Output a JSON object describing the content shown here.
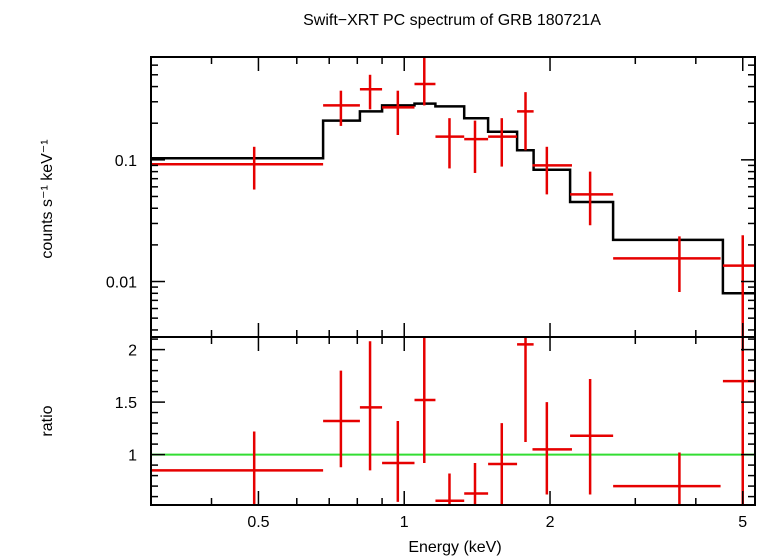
{
  "chart_data": [
    {
      "type": "scatter",
      "panel": "spectrum",
      "title": "Swift−XRT PC spectrum of GRB 180721A",
      "xlabel": "Energy (keV)",
      "ylabel": "counts s⁻¹ keV⁻¹",
      "x_scale": "log",
      "y_scale": "log",
      "xlim": [
        0.3,
        5.3
      ],
      "ylim": [
        0.0035,
        0.7
      ],
      "x_ticks": [
        {
          "value": 0.5,
          "label": "0.5"
        },
        {
          "value": 1,
          "label": "1"
        },
        {
          "value": 2,
          "label": "2"
        },
        {
          "value": 5,
          "label": "5"
        }
      ],
      "y_ticks": [
        {
          "value": 0.1,
          "label": "0.1"
        },
        {
          "value": 0.01,
          "label": "0.01"
        }
      ],
      "data_points": [
        {
          "x": 0.49,
          "xlo": 0.3,
          "xhi": 0.68,
          "y": 0.092,
          "ylo": 0.057,
          "yhi": 0.128
        },
        {
          "x": 0.74,
          "xlo": 0.68,
          "xhi": 0.81,
          "y": 0.28,
          "ylo": 0.19,
          "yhi": 0.37
        },
        {
          "x": 0.85,
          "xlo": 0.81,
          "xhi": 0.9,
          "y": 0.38,
          "ylo": 0.26,
          "yhi": 0.5
        },
        {
          "x": 0.97,
          "xlo": 0.9,
          "xhi": 1.05,
          "y": 0.27,
          "ylo": 0.16,
          "yhi": 0.37
        },
        {
          "x": 1.1,
          "xlo": 1.05,
          "xhi": 1.16,
          "y": 0.42,
          "ylo": 0.28,
          "yhi": 0.7
        },
        {
          "x": 1.24,
          "xlo": 1.16,
          "xhi": 1.33,
          "y": 0.155,
          "ylo": 0.085,
          "yhi": 0.22
        },
        {
          "x": 1.4,
          "xlo": 1.33,
          "xhi": 1.49,
          "y": 0.148,
          "ylo": 0.078,
          "yhi": 0.21
        },
        {
          "x": 1.59,
          "xlo": 1.49,
          "xhi": 1.71,
          "y": 0.155,
          "ylo": 0.088,
          "yhi": 0.22
        },
        {
          "x": 1.78,
          "xlo": 1.71,
          "xhi": 1.85,
          "y": 0.25,
          "ylo": 0.12,
          "yhi": 0.36
        },
        {
          "x": 1.97,
          "xlo": 1.84,
          "xhi": 2.22,
          "y": 0.09,
          "ylo": 0.052,
          "yhi": 0.128
        },
        {
          "x": 2.42,
          "xlo": 2.2,
          "xhi": 2.7,
          "y": 0.052,
          "ylo": 0.029,
          "yhi": 0.08
        },
        {
          "x": 3.7,
          "xlo": 2.7,
          "xhi": 4.5,
          "y": 0.0155,
          "ylo": 0.0082,
          "yhi": 0.0235
        },
        {
          "x": 5.0,
          "xlo": 4.55,
          "xhi": 5.3,
          "y": 0.0135,
          "ylo": 0.0035,
          "yhi": 0.024
        }
      ],
      "model_step": [
        {
          "from": 0.3,
          "to": 0.68,
          "y": 0.103
        },
        {
          "from": 0.68,
          "to": 0.81,
          "y": 0.21
        },
        {
          "from": 0.81,
          "to": 0.9,
          "y": 0.25
        },
        {
          "from": 0.9,
          "to": 1.05,
          "y": 0.28
        },
        {
          "from": 1.05,
          "to": 1.16,
          "y": 0.29
        },
        {
          "from": 1.16,
          "to": 1.33,
          "y": 0.275
        },
        {
          "from": 1.33,
          "to": 1.49,
          "y": 0.22
        },
        {
          "from": 1.49,
          "to": 1.71,
          "y": 0.17
        },
        {
          "from": 1.71,
          "to": 1.85,
          "y": 0.12
        },
        {
          "from": 1.85,
          "to": 2.2,
          "y": 0.083
        },
        {
          "from": 2.2,
          "to": 2.7,
          "y": 0.045
        },
        {
          "from": 2.7,
          "to": 4.55,
          "y": 0.022
        },
        {
          "from": 4.55,
          "to": 5.3,
          "y": 0.008
        }
      ],
      "colors": {
        "data": "#e60000",
        "model": "#000000"
      }
    },
    {
      "type": "scatter",
      "panel": "ratio",
      "xlabel": "Energy (keV)",
      "ylabel": "ratio",
      "x_scale": "log",
      "y_scale": "linear",
      "xlim": [
        0.3,
        5.3
      ],
      "ylim": [
        0.52,
        2.12
      ],
      "y_ticks": [
        {
          "value": 1,
          "label": "1"
        },
        {
          "value": 1.5,
          "label": "1.5"
        },
        {
          "value": 2,
          "label": "2"
        }
      ],
      "reference_line": {
        "y": 1.0,
        "color": "#33dd33"
      },
      "data_points": [
        {
          "x": 0.49,
          "xlo": 0.3,
          "xhi": 0.68,
          "y": 0.85,
          "ylo": 0.5,
          "yhi": 1.22
        },
        {
          "x": 0.74,
          "xlo": 0.68,
          "xhi": 0.81,
          "y": 1.32,
          "ylo": 0.88,
          "yhi": 1.8
        },
        {
          "x": 0.85,
          "xlo": 0.81,
          "xhi": 0.9,
          "y": 1.45,
          "ylo": 0.85,
          "yhi": 2.08
        },
        {
          "x": 0.97,
          "xlo": 0.9,
          "xhi": 1.05,
          "y": 0.92,
          "ylo": 0.55,
          "yhi": 1.32
        },
        {
          "x": 1.1,
          "xlo": 1.05,
          "xhi": 1.16,
          "y": 1.52,
          "ylo": 0.92,
          "yhi": 2.12
        },
        {
          "x": 1.24,
          "xlo": 1.16,
          "xhi": 1.33,
          "y": 0.56,
          "ylo": 0.5,
          "yhi": 0.82
        },
        {
          "x": 1.4,
          "xlo": 1.33,
          "xhi": 1.49,
          "y": 0.63,
          "ylo": 0.5,
          "yhi": 0.92
        },
        {
          "x": 1.59,
          "xlo": 1.49,
          "xhi": 1.71,
          "y": 0.91,
          "ylo": 0.5,
          "yhi": 1.3
        },
        {
          "x": 1.78,
          "xlo": 1.71,
          "xhi": 1.85,
          "y": 2.05,
          "ylo": 1.12,
          "yhi": 2.12
        },
        {
          "x": 1.97,
          "xlo": 1.84,
          "xhi": 2.22,
          "y": 1.05,
          "ylo": 0.62,
          "yhi": 1.5
        },
        {
          "x": 2.42,
          "xlo": 2.2,
          "xhi": 2.7,
          "y": 1.18,
          "ylo": 0.62,
          "yhi": 1.72
        },
        {
          "x": 3.7,
          "xlo": 2.7,
          "xhi": 4.5,
          "y": 0.7,
          "ylo": 0.5,
          "yhi": 1.02
        },
        {
          "x": 5.0,
          "xlo": 4.55,
          "xhi": 5.3,
          "y": 1.7,
          "ylo": 0.5,
          "yhi": 2.12
        }
      ],
      "colors": {
        "data": "#e60000"
      }
    }
  ]
}
